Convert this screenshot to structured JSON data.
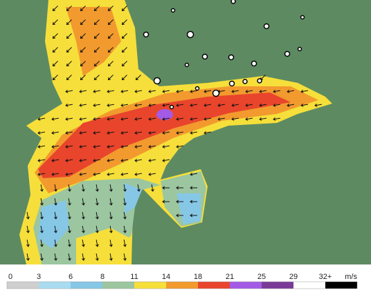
{
  "legend": {
    "labels": [
      "0",
      "3",
      "6",
      "8",
      "11",
      "14",
      "18",
      "21",
      "25",
      "29",
      "32+"
    ],
    "unit": "m/s",
    "colors": [
      "#cfcfcf",
      "#a9dcf0",
      "#86c7e6",
      "#9cc6a0",
      "#f6df3a",
      "#f29a2e",
      "#e8452c",
      "#a35be6",
      "#7b3a98",
      "#ffffff",
      "#000000"
    ]
  }
}
